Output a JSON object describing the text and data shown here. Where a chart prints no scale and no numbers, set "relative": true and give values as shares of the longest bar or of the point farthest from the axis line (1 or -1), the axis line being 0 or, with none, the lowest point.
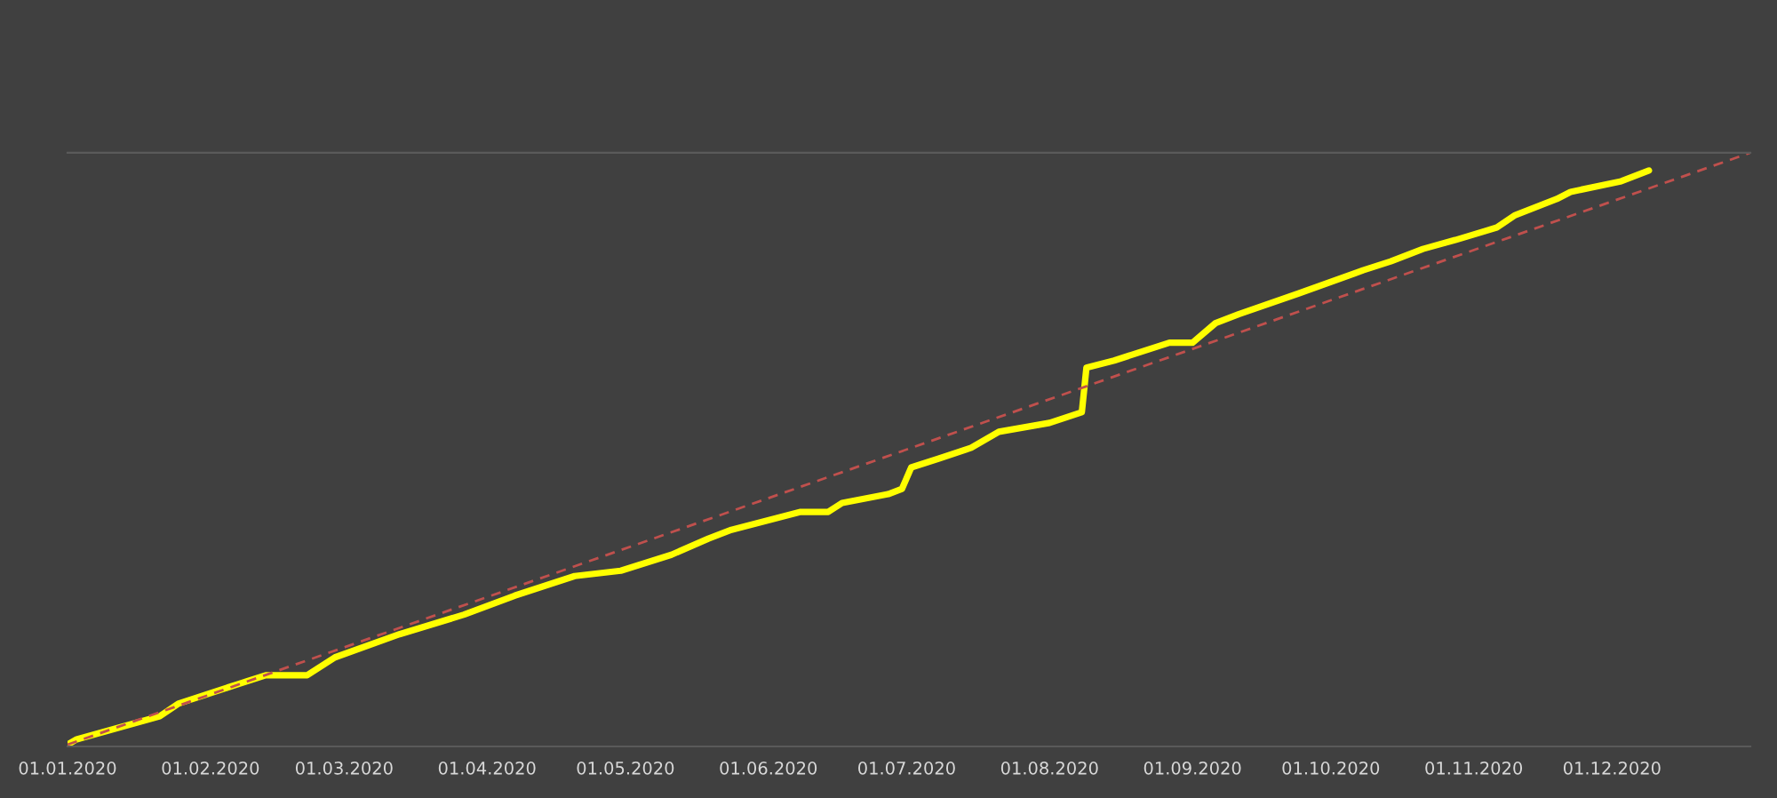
{
  "chart_data": {
    "type": "line",
    "relative": true,
    "tick_labels": "x",
    "legend": false,
    "grid": false,
    "xlim": [
      "2020-01-01",
      "2020-12-31"
    ],
    "xticks": [
      {
        "value": "2020-01-01",
        "label": "01.01.2020"
      },
      {
        "value": "2020-02-01",
        "label": "01.02.2020"
      },
      {
        "value": "2020-03-01",
        "label": "01.03.2020"
      },
      {
        "value": "2020-04-01",
        "label": "01.04.2020"
      },
      {
        "value": "2020-05-01",
        "label": "01.05.2020"
      },
      {
        "value": "2020-06-01",
        "label": "01.06.2020"
      },
      {
        "value": "2020-07-01",
        "label": "01.07.2020"
      },
      {
        "value": "2020-08-01",
        "label": "01.08.2020"
      },
      {
        "value": "2020-09-01",
        "label": "01.09.2020"
      },
      {
        "value": "2020-10-01",
        "label": "01.10.2020"
      },
      {
        "value": "2020-11-01",
        "label": "01.11.2020"
      },
      {
        "value": "2020-12-01",
        "label": "01.12.2020"
      }
    ],
    "series": [
      {
        "color": "#ffff00",
        "line_style": "solid",
        "x": [
          "2020-01-01",
          "2020-01-03",
          "2020-01-21",
          "2020-01-25",
          "2020-02-07",
          "2020-02-13",
          "2020-02-22",
          "2020-02-28",
          "2020-03-13",
          "2020-03-27",
          "2020-04-07",
          "2020-04-20",
          "2020-04-30",
          "2020-05-11",
          "2020-05-19",
          "2020-05-24",
          "2020-06-08",
          "2020-06-14",
          "2020-06-17",
          "2020-06-27",
          "2020-06-30",
          "2020-07-02",
          "2020-07-08",
          "2020-07-15",
          "2020-07-21",
          "2020-08-01",
          "2020-08-08",
          "2020-08-09",
          "2020-08-15",
          "2020-08-27",
          "2020-09-01",
          "2020-09-06",
          "2020-09-11",
          "2020-09-24",
          "2020-10-08",
          "2020-10-14",
          "2020-10-21",
          "2020-10-28",
          "2020-11-06",
          "2020-11-10",
          "2020-11-19",
          "2020-11-22",
          "2020-12-03",
          "2020-12-09"
        ],
        "values": [
          0.003,
          0.012,
          0.051,
          0.072,
          0.105,
          0.12,
          0.12,
          0.15,
          0.189,
          0.222,
          0.254,
          0.287,
          0.296,
          0.323,
          0.35,
          0.365,
          0.395,
          0.395,
          0.41,
          0.425,
          0.434,
          0.47,
          0.485,
          0.503,
          0.53,
          0.545,
          0.563,
          0.638,
          0.65,
          0.68,
          0.68,
          0.713,
          0.728,
          0.763,
          0.802,
          0.817,
          0.838,
          0.853,
          0.874,
          0.895,
          0.922,
          0.934,
          0.952,
          0.97
        ]
      },
      {
        "type": "line",
        "color": "#c0504d",
        "line_style": "dashed",
        "x": [
          "2020-01-01",
          "2020-12-31"
        ],
        "values": [
          0.003,
          1.0
        ]
      }
    ]
  }
}
